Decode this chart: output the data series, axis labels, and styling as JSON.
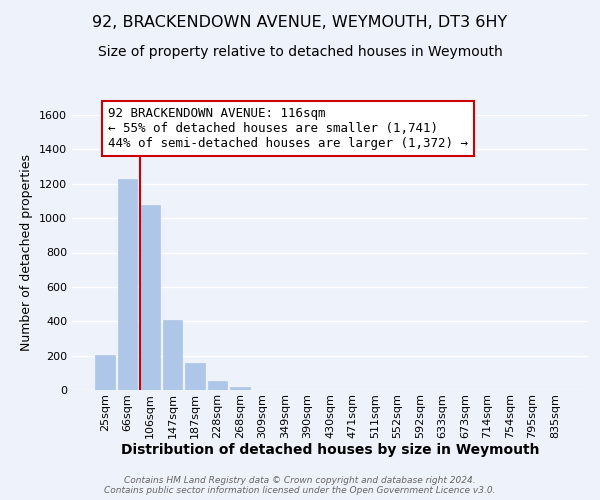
{
  "title": "92, BRACKENDOWN AVENUE, WEYMOUTH, DT3 6HY",
  "subtitle": "Size of property relative to detached houses in Weymouth",
  "xlabel": "Distribution of detached houses by size in Weymouth",
  "ylabel": "Number of detached properties",
  "bar_labels": [
    "25sqm",
    "66sqm",
    "106sqm",
    "147sqm",
    "187sqm",
    "228sqm",
    "268sqm",
    "309sqm",
    "349sqm",
    "390sqm",
    "430sqm",
    "471sqm",
    "511sqm",
    "552sqm",
    "592sqm",
    "633sqm",
    "673sqm",
    "714sqm",
    "754sqm",
    "795sqm",
    "835sqm"
  ],
  "bar_values": [
    205,
    1225,
    1075,
    405,
    160,
    52,
    20,
    0,
    0,
    0,
    0,
    0,
    0,
    0,
    0,
    0,
    0,
    0,
    0,
    0,
    0
  ],
  "bar_color": "#aec6e8",
  "vline_index": 2,
  "annotation_line1": "92 BRACKENDOWN AVENUE: 116sqm",
  "annotation_line2": "← 55% of detached houses are smaller (1,741)",
  "annotation_line3": "44% of semi-detached houses are larger (1,372) →",
  "annotation_box_color": "#ffffff",
  "annotation_border_color": "#cc0000",
  "vline_color": "#cc0000",
  "ylim": [
    0,
    1600
  ],
  "yticks": [
    0,
    200,
    400,
    600,
    800,
    1000,
    1200,
    1400,
    1600
  ],
  "background_color": "#eef2fa",
  "grid_color": "#ffffff",
  "footer_line1": "Contains HM Land Registry data © Crown copyright and database right 2024.",
  "footer_line2": "Contains public sector information licensed under the Open Government Licence v3.0.",
  "title_fontsize": 11.5,
  "subtitle_fontsize": 10,
  "xlabel_fontsize": 10,
  "ylabel_fontsize": 9,
  "annotation_fontsize": 9,
  "tick_fontsize": 8
}
